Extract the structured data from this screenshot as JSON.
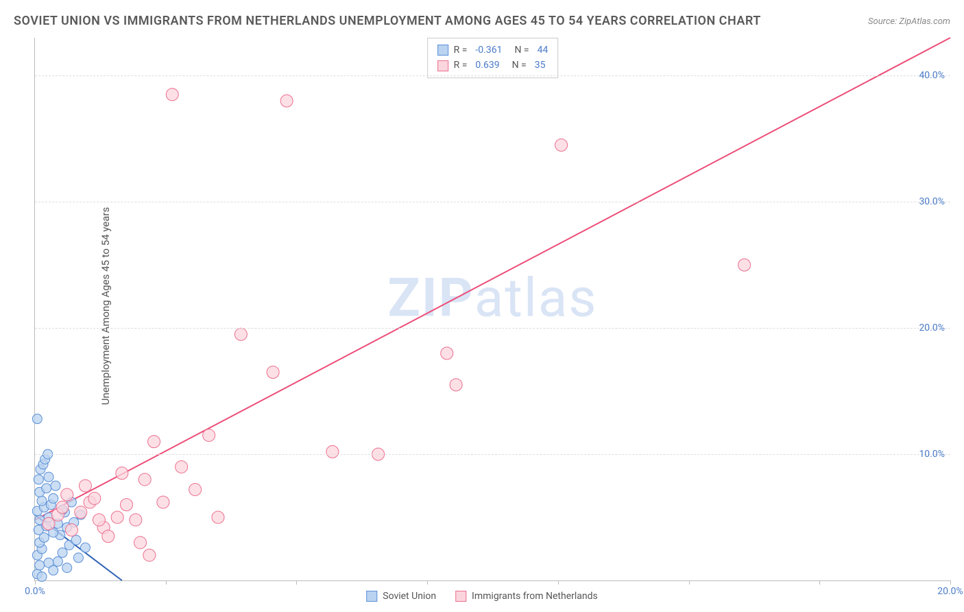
{
  "title": "SOVIET UNION VS IMMIGRANTS FROM NETHERLANDS UNEMPLOYMENT AMONG AGES 45 TO 54 YEARS CORRELATION CHART",
  "source": "Source: ZipAtlas.com",
  "y_axis_label": "Unemployment Among Ages 45 to 54 years",
  "watermark_prefix": "ZIP",
  "watermark_suffix": "atlas",
  "chart": {
    "type": "scatter",
    "background_color": "#ffffff",
    "grid_color": "#dddddd",
    "axis_color": "#bbbbbb",
    "tick_label_color": "#4a7bc8",
    "tick_fontsize": 14,
    "title_color": "#5a5a5a",
    "title_fontsize": 18,
    "xlim": [
      0,
      20
    ],
    "ylim": [
      0,
      43
    ],
    "x_ticks": [
      0,
      2.857,
      5.714,
      8.571,
      11.428,
      14.285,
      17.142,
      20
    ],
    "x_tick_labels": {
      "0": "0.0%",
      "20": "20.0%"
    },
    "y_ticks": [
      10,
      20,
      30,
      40
    ],
    "y_tick_labels": [
      "10.0%",
      "20.0%",
      "30.0%",
      "40.0%"
    ],
    "series": [
      {
        "name": "Soviet Union",
        "marker_color_fill": "#b9d3f0",
        "marker_color_stroke": "#5a8fd6",
        "line_color": "#2c5fb3",
        "marker_radius": 7,
        "line_width": 2,
        "R": "-0.361",
        "N": "44",
        "regression": {
          "x1": 0,
          "y1": 5.2,
          "x2": 1.9,
          "y2": 0
        },
        "points": [
          [
            0.05,
            0.5
          ],
          [
            0.1,
            1.2
          ],
          [
            0.05,
            2.0
          ],
          [
            0.15,
            2.5
          ],
          [
            0.1,
            3.0
          ],
          [
            0.2,
            3.4
          ],
          [
            0.08,
            4.0
          ],
          [
            0.25,
            4.3
          ],
          [
            0.1,
            4.8
          ],
          [
            0.3,
            5.0
          ],
          [
            0.05,
            5.5
          ],
          [
            0.2,
            5.8
          ],
          [
            0.35,
            6.0
          ],
          [
            0.15,
            6.3
          ],
          [
            0.4,
            6.5
          ],
          [
            0.1,
            7.0
          ],
          [
            0.25,
            7.3
          ],
          [
            0.45,
            7.5
          ],
          [
            0.08,
            8.0
          ],
          [
            0.3,
            8.2
          ],
          [
            0.5,
            1.5
          ],
          [
            0.6,
            2.2
          ],
          [
            0.55,
            3.6
          ],
          [
            0.7,
            4.2
          ],
          [
            0.65,
            5.4
          ],
          [
            0.8,
            6.2
          ],
          [
            0.75,
            2.8
          ],
          [
            0.9,
            3.2
          ],
          [
            0.85,
            4.6
          ],
          [
            1.0,
            5.2
          ],
          [
            0.95,
            1.8
          ],
          [
            1.1,
            2.6
          ],
          [
            0.12,
            8.8
          ],
          [
            0.18,
            9.2
          ],
          [
            0.22,
            9.6
          ],
          [
            0.28,
            10.0
          ],
          [
            0.05,
            12.8
          ],
          [
            0.4,
            3.8
          ],
          [
            0.5,
            4.5
          ],
          [
            0.6,
            5.6
          ],
          [
            0.7,
            1.0
          ],
          [
            0.3,
            1.4
          ],
          [
            0.4,
            0.8
          ],
          [
            0.15,
            0.3
          ]
        ]
      },
      {
        "name": "Immigrants from Netherlands",
        "marker_color_fill": "#fbd5de",
        "marker_color_stroke": "#ec6e8e",
        "line_color": "#ec4d78",
        "marker_radius": 9,
        "line_width": 2,
        "R": "0.639",
        "N": "35",
        "regression": {
          "x1": 0,
          "y1": 4.8,
          "x2": 20,
          "y2": 43
        },
        "points": [
          [
            0.3,
            4.5
          ],
          [
            0.5,
            5.2
          ],
          [
            0.8,
            4.0
          ],
          [
            0.6,
            5.8
          ],
          [
            1.0,
            5.4
          ],
          [
            1.2,
            6.2
          ],
          [
            0.7,
            6.8
          ],
          [
            1.5,
            4.2
          ],
          [
            1.3,
            6.5
          ],
          [
            1.8,
            5.0
          ],
          [
            1.1,
            7.5
          ],
          [
            2.0,
            6.0
          ],
          [
            1.6,
            3.5
          ],
          [
            2.2,
            4.8
          ],
          [
            2.5,
            2.0
          ],
          [
            1.9,
            8.5
          ],
          [
            2.8,
            6.2
          ],
          [
            2.3,
            3.0
          ],
          [
            3.2,
            9.0
          ],
          [
            2.6,
            11.0
          ],
          [
            3.5,
            7.2
          ],
          [
            3.8,
            11.5
          ],
          [
            4.5,
            19.5
          ],
          [
            3.0,
            38.5
          ],
          [
            5.5,
            38.0
          ],
          [
            5.2,
            16.5
          ],
          [
            6.5,
            10.2
          ],
          [
            7.5,
            10.0
          ],
          [
            9.0,
            18.0
          ],
          [
            9.2,
            15.5
          ],
          [
            11.5,
            34.5
          ],
          [
            15.5,
            25.0
          ],
          [
            4.0,
            5.0
          ],
          [
            2.4,
            8.0
          ],
          [
            1.4,
            4.8
          ]
        ]
      }
    ]
  },
  "legend": {
    "swatch_border_blue": "#5a8fd6",
    "swatch_fill_blue": "#b9d3f0",
    "swatch_border_pink": "#ec6e8e",
    "swatch_fill_pink": "#fbd5de"
  }
}
